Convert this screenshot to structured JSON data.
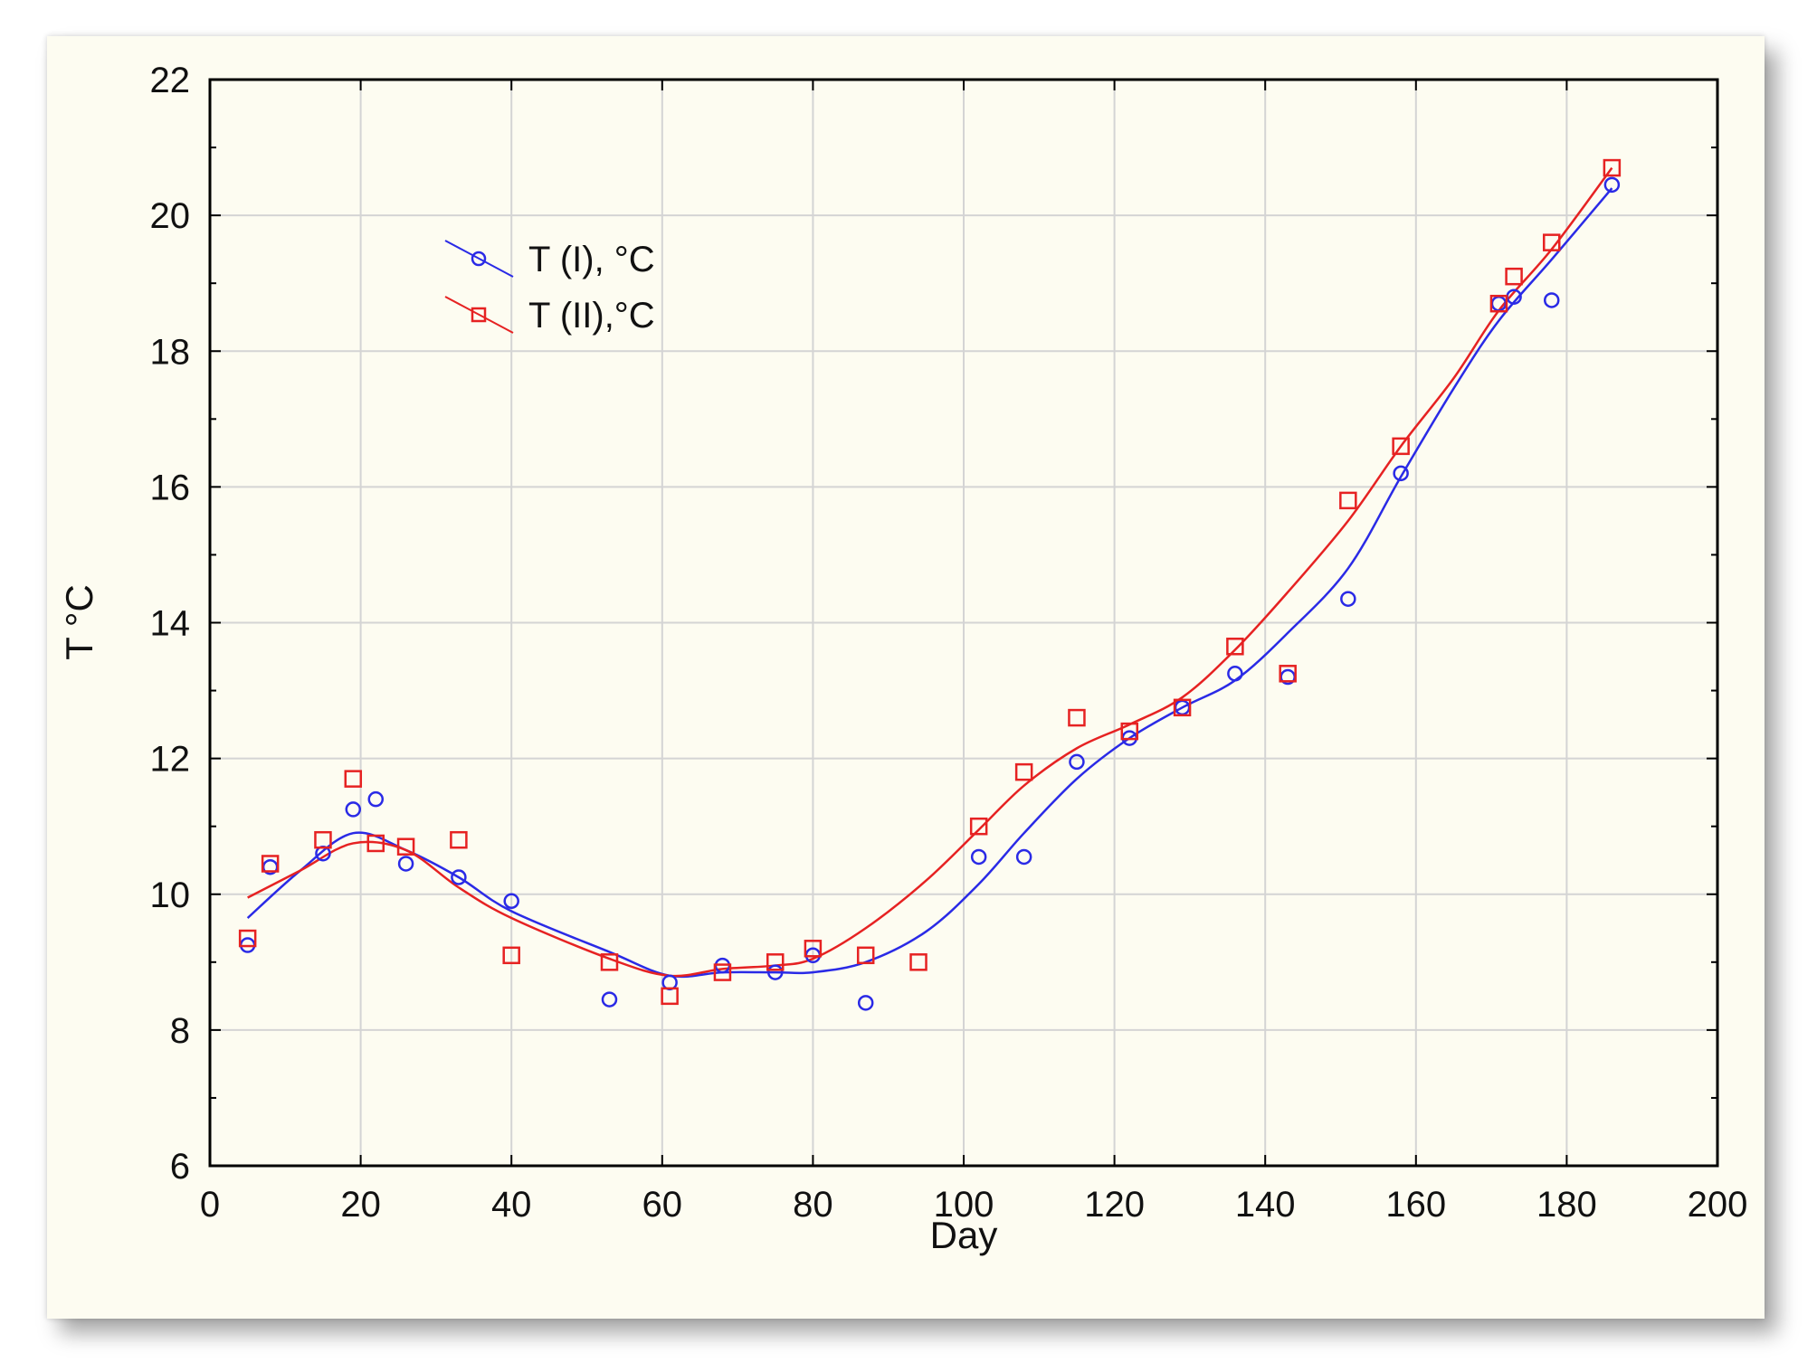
{
  "chart_data": {
    "type": "scatter",
    "title": "",
    "xlabel": "Day",
    "ylabel": "T °C",
    "xlim": [
      0,
      200
    ],
    "ylim": [
      6,
      22
    ],
    "xticks": [
      0,
      20,
      40,
      60,
      80,
      100,
      120,
      140,
      160,
      180,
      200
    ],
    "yticks": [
      6,
      8,
      10,
      12,
      14,
      16,
      18,
      20,
      22
    ],
    "grid": true,
    "legend_position": "upper-left",
    "fit_lines": "smoothed",
    "series": [
      {
        "name": "T (I), °C",
        "color": "#2a2ae6",
        "marker": "circle",
        "x": [
          5,
          8,
          15,
          19,
          22,
          26,
          33,
          40,
          53,
          61,
          68,
          75,
          80,
          87,
          102,
          108,
          115,
          122,
          129,
          136,
          143,
          151,
          158,
          171,
          173,
          178,
          186
        ],
        "y": [
          9.25,
          10.4,
          10.6,
          11.25,
          11.4,
          10.45,
          10.25,
          9.9,
          8.45,
          8.7,
          8.95,
          8.85,
          9.1,
          8.4,
          10.55,
          10.55,
          11.95,
          12.3,
          12.75,
          13.25,
          13.2,
          14.35,
          16.2,
          18.7,
          18.8,
          18.75,
          20.45
        ],
        "fit": [
          [
            5,
            9.65
          ],
          [
            12,
            10.35
          ],
          [
            19,
            10.9
          ],
          [
            26,
            10.65
          ],
          [
            33,
            10.25
          ],
          [
            40,
            9.75
          ],
          [
            53,
            9.15
          ],
          [
            61,
            8.8
          ],
          [
            68,
            8.85
          ],
          [
            75,
            8.85
          ],
          [
            80,
            8.85
          ],
          [
            87,
            9.0
          ],
          [
            95,
            9.45
          ],
          [
            102,
            10.15
          ],
          [
            108,
            10.9
          ],
          [
            115,
            11.7
          ],
          [
            122,
            12.3
          ],
          [
            129,
            12.75
          ],
          [
            136,
            13.15
          ],
          [
            143,
            13.85
          ],
          [
            151,
            14.8
          ],
          [
            158,
            16.15
          ],
          [
            165,
            17.45
          ],
          [
            171,
            18.45
          ],
          [
            178,
            19.35
          ],
          [
            186,
            20.4
          ]
        ]
      },
      {
        "name": "T (II),°C",
        "color": "#e62222",
        "marker": "square",
        "x": [
          5,
          8,
          15,
          19,
          22,
          26,
          33,
          40,
          53,
          61,
          68,
          75,
          80,
          87,
          94,
          102,
          108,
          115,
          122,
          129,
          136,
          143,
          151,
          158,
          171,
          173,
          178,
          186
        ],
        "y": [
          9.35,
          10.45,
          10.8,
          11.7,
          10.75,
          10.7,
          10.8,
          9.1,
          9.0,
          8.5,
          8.85,
          9.0,
          9.2,
          9.1,
          9.0,
          11.0,
          11.8,
          12.6,
          12.4,
          12.75,
          13.65,
          13.25,
          15.8,
          16.6,
          18.7,
          19.1,
          19.6,
          20.7
        ],
        "fit": [
          [
            5,
            9.95
          ],
          [
            12,
            10.35
          ],
          [
            19,
            10.75
          ],
          [
            26,
            10.65
          ],
          [
            33,
            10.1
          ],
          [
            40,
            9.65
          ],
          [
            53,
            9.05
          ],
          [
            61,
            8.8
          ],
          [
            68,
            8.9
          ],
          [
            75,
            8.95
          ],
          [
            80,
            9.05
          ],
          [
            87,
            9.5
          ],
          [
            95,
            10.2
          ],
          [
            102,
            10.95
          ],
          [
            108,
            11.6
          ],
          [
            115,
            12.15
          ],
          [
            122,
            12.5
          ],
          [
            129,
            12.9
          ],
          [
            136,
            13.6
          ],
          [
            143,
            14.45
          ],
          [
            151,
            15.5
          ],
          [
            158,
            16.6
          ],
          [
            165,
            17.6
          ],
          [
            171,
            18.6
          ],
          [
            178,
            19.5
          ],
          [
            186,
            20.7
          ]
        ]
      }
    ]
  }
}
